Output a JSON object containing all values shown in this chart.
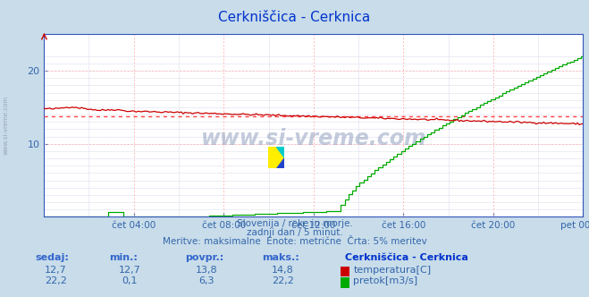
{
  "title": "Cerkniščica - Cerknica",
  "bg_color": "#c8dcea",
  "plot_bg_color": "#ffffff",
  "grid_color_main": "#ffbbbb",
  "grid_color_minor": "#ddddee",
  "axis_color": "#3355bb",
  "text_color": "#3366aa",
  "x_labels": [
    "čet 04:00",
    "čet 08:00",
    "čet 12:00",
    "čet 16:00",
    "čet 20:00",
    "pet 00:00"
  ],
  "x_ticks_norm": [
    0.16667,
    0.33333,
    0.5,
    0.66667,
    0.83333,
    1.0
  ],
  "temp_color": "#cc0000",
  "flow_color": "#00aa00",
  "avg_line_color": "#ff4444",
  "temp_min": 12.7,
  "temp_max": 14.8,
  "temp_avg": 13.8,
  "temp_current": 12.7,
  "flow_min": 0.1,
  "flow_max": 22.2,
  "flow_avg": 6.3,
  "flow_current": 22.2,
  "ymax": 22.2,
  "n_points": 288,
  "subtitle1": "Slovenija / reke in morje.",
  "subtitle2": "zadnji dan / 5 minut.",
  "subtitle3": "Meritve: maksimalne  Enote: metrične  Črta: 5% meritev",
  "station": "Cerkniščica - Cerknica",
  "watermark": "www.si-vreme.com",
  "left_label": "www.si-vreme.com",
  "title_color": "#0033cc",
  "header_color": "#3366cc",
  "value_color": "#3366aa"
}
